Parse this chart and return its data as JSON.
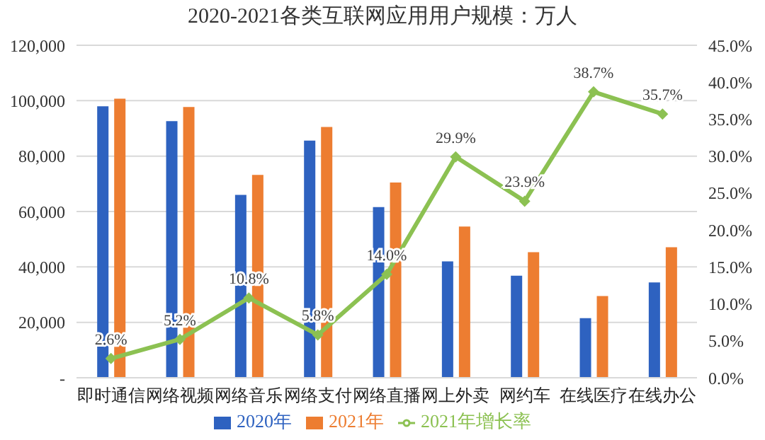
{
  "chart_data": {
    "type": "bar",
    "title": "2020-2021各类互联网应用用户规模：万人",
    "categories": [
      "即时通信",
      "网络视频",
      "网络音乐",
      "网络支付",
      "网络直播",
      "网上外卖",
      "网约车",
      "在线医疗",
      "在线办公"
    ],
    "series": [
      {
        "name": "2020年",
        "color": "#2e62c0",
        "values": [
          98000,
          92600,
          66000,
          85600,
          61600,
          42000,
          36800,
          21500,
          34400
        ]
      },
      {
        "name": "2021年",
        "color": "#ed7d31",
        "values": [
          100700,
          97700,
          73200,
          90500,
          70500,
          54600,
          45300,
          29500,
          47100
        ]
      },
      {
        "name": "2021年增长率",
        "type": "line",
        "axis": "y2",
        "color": "#8cc152",
        "marker": "diamond",
        "data_labels": true,
        "values": [
          2.6,
          5.2,
          10.8,
          5.8,
          14.0,
          29.9,
          23.9,
          38.7,
          35.7
        ],
        "value_labels": [
          "2.6%",
          "5.2%",
          "10.8%",
          "5.8%",
          "14.0%",
          "29.9%",
          "23.9%",
          "38.7%",
          "35.7%"
        ]
      }
    ],
    "ylim": [
      0,
      120000
    ],
    "yticks": [
      {
        "value": 0,
        "label": "-"
      },
      {
        "value": 20000,
        "label": "20,000"
      },
      {
        "value": 40000,
        "label": "40,000"
      },
      {
        "value": 60000,
        "label": "60,000"
      },
      {
        "value": 80000,
        "label": "80,000"
      },
      {
        "value": 100000,
        "label": "100,000"
      },
      {
        "value": 120000,
        "label": "120,000"
      }
    ],
    "y2lim": [
      0,
      45
    ],
    "y2ticks": [
      {
        "value": 0,
        "label": "0.0%"
      },
      {
        "value": 5,
        "label": "5.0%"
      },
      {
        "value": 10,
        "label": "10.0%"
      },
      {
        "value": 15,
        "label": "15.0%"
      },
      {
        "value": 20,
        "label": "20.0%"
      },
      {
        "value": 25,
        "label": "25.0%"
      },
      {
        "value": 30,
        "label": "30.0%"
      },
      {
        "value": 35,
        "label": "35.0%"
      },
      {
        "value": 40,
        "label": "40.0%"
      },
      {
        "value": 45,
        "label": "45.0%"
      }
    ],
    "grid": "y",
    "legend": "bottom"
  }
}
